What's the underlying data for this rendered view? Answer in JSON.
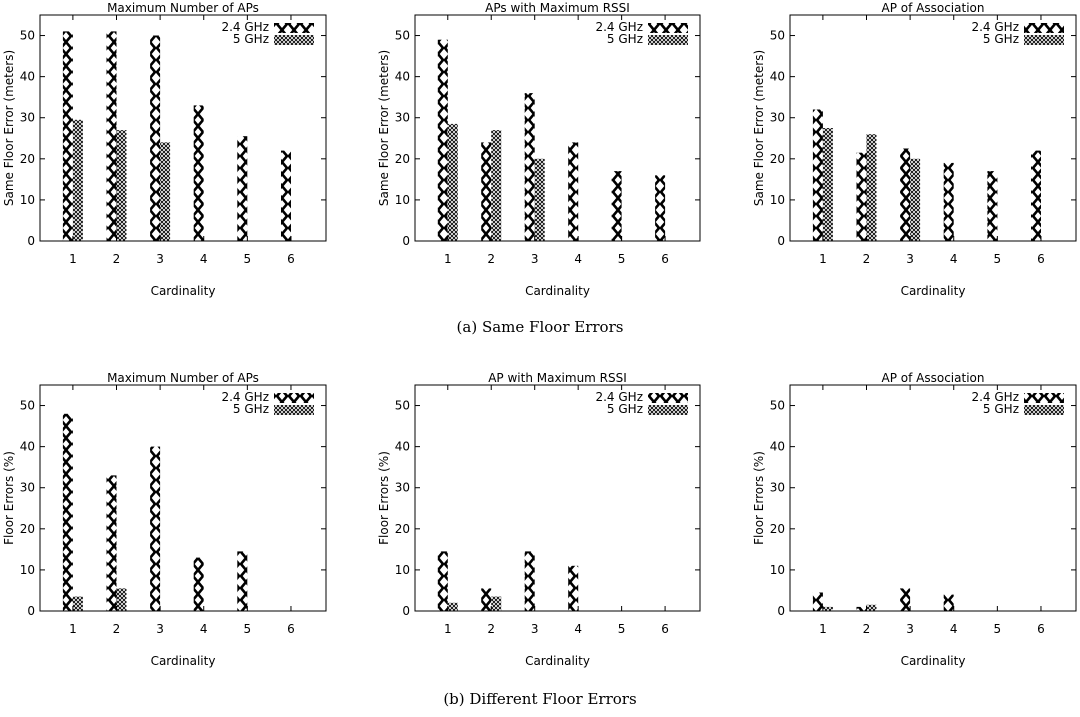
{
  "captions": {
    "a": "(a) Same Floor Errors",
    "b": "(b) Different Floor Errors"
  },
  "colors": {
    "bar_stroke": "#000000",
    "axis": "#000000"
  },
  "chart_data": [
    {
      "type": "bar",
      "title": "Maximum Number of APs",
      "xlabel": "Cardinality",
      "ylabel": "Same Floor Error (meters)",
      "categories": [
        "1",
        "2",
        "3",
        "4",
        "5",
        "6"
      ],
      "ylim": [
        0,
        55
      ],
      "yticks": [
        0,
        10,
        20,
        30,
        40,
        50
      ],
      "legend": "top-right",
      "series": [
        {
          "name": "2.4 GHz",
          "pattern": "wave-x",
          "values": [
            51,
            51,
            50,
            33,
            25.5,
            22
          ]
        },
        {
          "name": "5 GHz",
          "pattern": "crosshatch",
          "values": [
            29.5,
            27,
            24,
            null,
            null,
            null
          ]
        }
      ]
    },
    {
      "type": "bar",
      "title": "APs with Maximum RSSI",
      "xlabel": "Cardinality",
      "ylabel": "Same Floor Error (meters)",
      "categories": [
        "1",
        "2",
        "3",
        "4",
        "5",
        "6"
      ],
      "ylim": [
        0,
        55
      ],
      "yticks": [
        0,
        10,
        20,
        30,
        40,
        50
      ],
      "legend": "top-right",
      "series": [
        {
          "name": "2.4 GHz",
          "pattern": "wave-x",
          "values": [
            49,
            24,
            36,
            24,
            17,
            16
          ]
        },
        {
          "name": "5 GHz",
          "pattern": "crosshatch",
          "values": [
            28.5,
            27,
            20,
            null,
            null,
            null
          ]
        }
      ]
    },
    {
      "type": "bar",
      "title": "AP of Association",
      "xlabel": "Cardinality",
      "ylabel": "Same Floor Error (meters)",
      "categories": [
        "1",
        "2",
        "3",
        "4",
        "5",
        "6"
      ],
      "ylim": [
        0,
        55
      ],
      "yticks": [
        0,
        10,
        20,
        30,
        40,
        50
      ],
      "legend": "top-right",
      "series": [
        {
          "name": "2.4 GHz",
          "pattern": "wave-x",
          "values": [
            32,
            21.5,
            22.5,
            19,
            17,
            22
          ]
        },
        {
          "name": "5 GHz",
          "pattern": "crosshatch",
          "values": [
            27.5,
            26,
            20,
            null,
            null,
            null
          ]
        }
      ]
    },
    {
      "type": "bar",
      "title": "Maximum Number of APs",
      "xlabel": "Cardinality",
      "ylabel": "Floor Errors (%)",
      "categories": [
        "1",
        "2",
        "3",
        "4",
        "5",
        "6"
      ],
      "ylim": [
        0,
        55
      ],
      "yticks": [
        0,
        10,
        20,
        30,
        40,
        50
      ],
      "legend": "top-right",
      "series": [
        {
          "name": "2.4 GHz",
          "pattern": "wave-x",
          "values": [
            48,
            33,
            40,
            13,
            14.5,
            null
          ]
        },
        {
          "name": "5 GHz",
          "pattern": "crosshatch",
          "values": [
            3.5,
            5.5,
            null,
            null,
            null,
            null
          ]
        }
      ]
    },
    {
      "type": "bar",
      "title": "AP with Maximum RSSI",
      "xlabel": "Cardinality",
      "ylabel": "Floor Errors (%)",
      "categories": [
        "1",
        "2",
        "3",
        "4",
        "5",
        "6"
      ],
      "ylim": [
        0,
        55
      ],
      "yticks": [
        0,
        10,
        20,
        30,
        40,
        50
      ],
      "legend": "top-right",
      "series": [
        {
          "name": "2.4 GHz",
          "pattern": "wave-x",
          "values": [
            14.5,
            5.5,
            14.5,
            11,
            null,
            null
          ]
        },
        {
          "name": "5 GHz",
          "pattern": "crosshatch",
          "values": [
            2,
            3.5,
            null,
            null,
            null,
            null
          ]
        }
      ]
    },
    {
      "type": "bar",
      "title": "AP of Association",
      "xlabel": "Cardinality",
      "ylabel": "Floor Errors (%)",
      "categories": [
        "1",
        "2",
        "3",
        "4",
        "5",
        "6"
      ],
      "ylim": [
        0,
        55
      ],
      "yticks": [
        0,
        10,
        20,
        30,
        40,
        50
      ],
      "legend": "top-right",
      "series": [
        {
          "name": "2.4 GHz",
          "pattern": "wave-x",
          "values": [
            4.5,
            1,
            5.5,
            4,
            null,
            null
          ]
        },
        {
          "name": "5 GHz",
          "pattern": "crosshatch",
          "values": [
            1,
            1.5,
            null,
            null,
            null,
            null
          ]
        }
      ]
    }
  ]
}
